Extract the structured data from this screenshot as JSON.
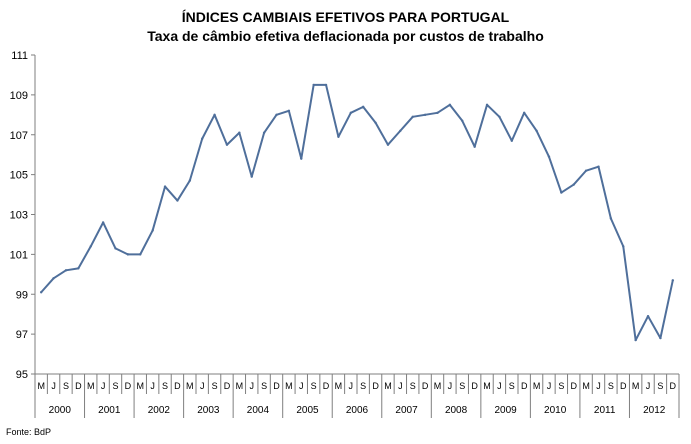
{
  "colors": {
    "line": "#4f6f9b",
    "axis": "#7f7f7f",
    "text": "#000000"
  },
  "chart_data": {
    "type": "line",
    "title": "ÍNDICES CAMBIAIS EFETIVOS PARA PORTUGAL",
    "subtitle": "Taxa de câmbio efetiva deflacionada por custos de trabalho",
    "source": "Fonte: BdP",
    "xlabel": "",
    "ylabel": "",
    "ylim": [
      95,
      111
    ],
    "yticks": [
      95,
      97,
      99,
      101,
      103,
      105,
      107,
      109,
      111
    ],
    "grid": false,
    "legend": "none",
    "period_labels": [
      "M",
      "J",
      "S",
      "D"
    ],
    "years": [
      "2000",
      "2001",
      "2002",
      "2003",
      "2004",
      "2005",
      "2006",
      "2007",
      "2008",
      "2009",
      "2010",
      "2011",
      "2012"
    ],
    "series": [
      {
        "name": "Taxa de câmbio efetiva deflacionada por custos de trabalho",
        "values": [
          99.1,
          99.8,
          100.2,
          100.3,
          101.4,
          102.6,
          101.3,
          101.0,
          101.0,
          102.2,
          104.4,
          103.7,
          104.7,
          106.8,
          108.0,
          106.5,
          107.1,
          104.9,
          107.1,
          108.0,
          108.2,
          105.8,
          109.5,
          109.5,
          106.9,
          108.1,
          108.4,
          107.6,
          106.5,
          107.2,
          107.9,
          108.0,
          108.1,
          108.5,
          107.7,
          106.4,
          108.5,
          107.9,
          106.7,
          108.1,
          107.2,
          105.9,
          104.1,
          104.5,
          105.2,
          105.4,
          102.8,
          101.4,
          96.7,
          97.9,
          96.8,
          99.7
        ]
      }
    ]
  }
}
